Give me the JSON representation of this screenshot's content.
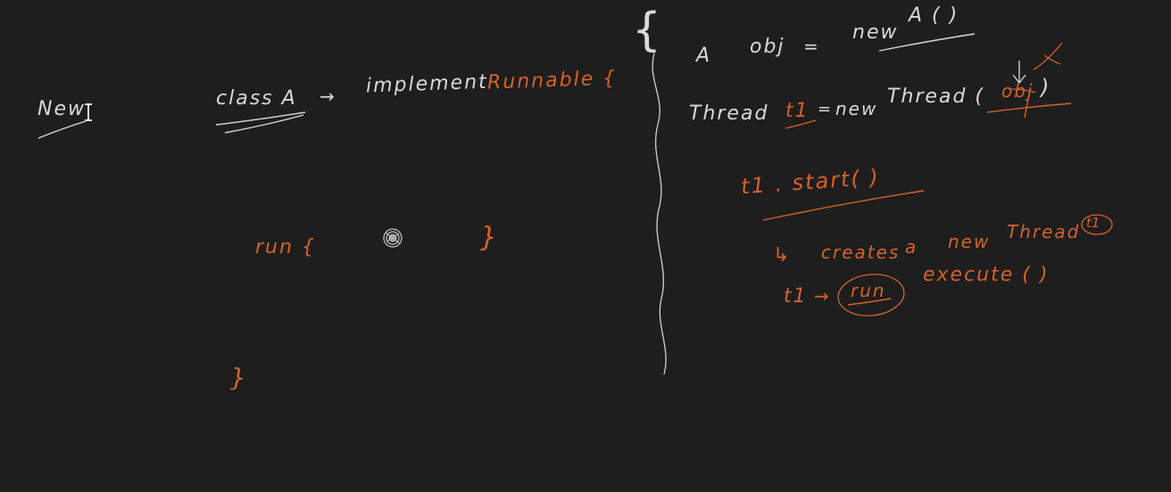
{
  "colors": {
    "background": "#1e1e1e",
    "white_ink": "#d9d9d9",
    "orange_ink": "#d4622c"
  },
  "left": {
    "heading": "New",
    "class_decl": "class A",
    "arrow": "→",
    "implement": "implement",
    "runnable": "Runnable {",
    "run": "run {",
    "close_inner": "}",
    "close_outer": "}"
  },
  "right": {
    "brace": "{",
    "line1": {
      "a": "A",
      "obj": "obj",
      "eq": "=",
      "new": "new",
      "ctor": "A ( )"
    },
    "line2": {
      "thread": "Thread",
      "t1": "t1",
      "eq": "=",
      "new": "new",
      "thread_ctor": "Thread (",
      "arg": "obj",
      "close": ")"
    },
    "start": "t1 . start( )",
    "creates": {
      "arrow": "↳",
      "creates": "creates",
      "a": "a",
      "new": "new",
      "thread": "Thread",
      "t1": "t1"
    },
    "exec": {
      "t1": "t1",
      "arrow": "→",
      "run": "run",
      "execute": "execute ( )"
    }
  },
  "tool": {
    "cursor": "text-cursor-icon"
  }
}
